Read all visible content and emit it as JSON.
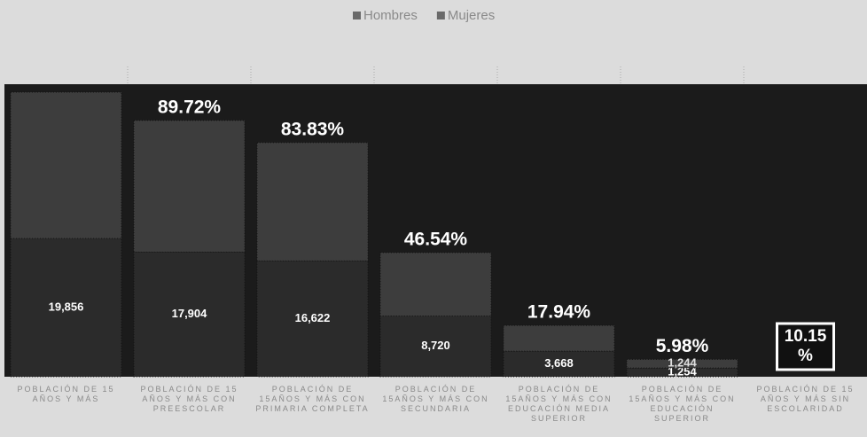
{
  "chart_data": {
    "type": "stacked_bar",
    "categories": [
      "POBLACIÓN DE 15 AÑOS Y MÁS",
      "POBLACIÓN DE 15 AÑOS Y MÁS CON PREESCOLAR",
      "POBLACIÓN DE 15AÑOS Y MÁS CON PRIMARIA COMPLETA",
      "POBLACIÓN DE 15AÑOS Y MÁS CON SECUNDARIA",
      "POBLACIÓN DE 15AÑOS Y MÁS CON EDUCACIÓN MEDIA SUPERIOR",
      "POBLACIÓN DE 15AÑOS Y MÁS CON EDUCACIÓN SUPERIOR",
      "POBLACIÓN DE 15 AÑOS Y MÁS SIN ESCOLARIDAD"
    ],
    "series": [
      {
        "name": "Hombres",
        "color": "#2b2b2b",
        "values": [
          19856,
          17904,
          16622,
          8720,
          3668,
          1254,
          null
        ],
        "value_labels": [
          "19,856",
          "17,904",
          "16,622",
          "8,720",
          "3,668",
          "1,254",
          null
        ]
      },
      {
        "name": "Mujeres",
        "color": "#3d3d3d",
        "values": [
          21000,
          18900,
          17000,
          9100,
          3700,
          1244,
          null
        ],
        "value_labels": [
          null,
          null,
          null,
          null,
          null,
          "1,244",
          null
        ]
      }
    ],
    "annotations": [
      {
        "text": "89.72%",
        "category": 1
      },
      {
        "text": "83.83%",
        "category": 2
      },
      {
        "text": "46.54%",
        "category": 3
      },
      {
        "text": "17.94%",
        "category": 4
      },
      {
        "text": "5.98%",
        "category": 5
      },
      {
        "text": "10.15 %",
        "category": 6,
        "boxed": true
      }
    ],
    "ylim": [
      0,
      42000
    ],
    "legend": "top"
  }
}
